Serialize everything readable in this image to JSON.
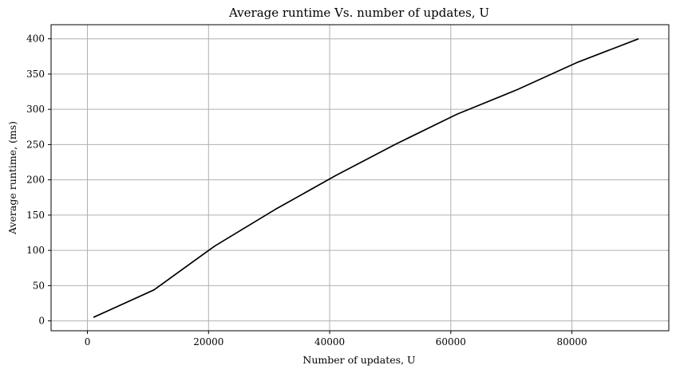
{
  "chart_data": {
    "type": "line",
    "title": "Average runtime Vs. number of updates, U",
    "xlabel": "Number of updates, U",
    "ylabel": "Average runtime, (ms)",
    "xlim": [
      -6000,
      96000
    ],
    "ylim": [
      -14,
      420
    ],
    "xticks": [
      0,
      20000,
      40000,
      60000,
      80000
    ],
    "xtick_labels": [
      "0",
      "20000",
      "40000",
      "60000",
      "80000"
    ],
    "yticks": [
      0,
      50,
      100,
      150,
      200,
      250,
      300,
      350,
      400
    ],
    "ytick_labels": [
      "0",
      "50",
      "100",
      "150",
      "200",
      "250",
      "300",
      "350",
      "400"
    ],
    "grid": true,
    "series": [
      {
        "color": "#000000",
        "x": [
          1000,
          11000,
          21000,
          31000,
          41000,
          51000,
          61000,
          71000,
          81000,
          91000
        ],
        "y": [
          5,
          44,
          106,
          158,
          206,
          251,
          293,
          328,
          367,
          400
        ]
      }
    ]
  }
}
